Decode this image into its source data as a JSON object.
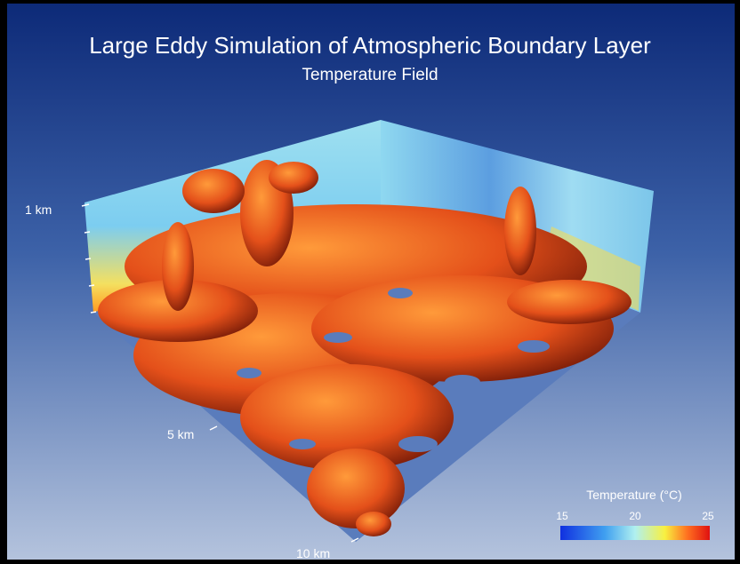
{
  "header": {
    "title": "Large Eddy Simulation of Atmospheric Boundary Layer",
    "subtitle": "Temperature Field"
  },
  "axis_labels": [
    "1 km",
    "5 km",
    "10 km"
  ],
  "colorbar": {
    "label": "Temperature (°C)",
    "ticks": [
      15,
      20,
      25
    ]
  }
}
